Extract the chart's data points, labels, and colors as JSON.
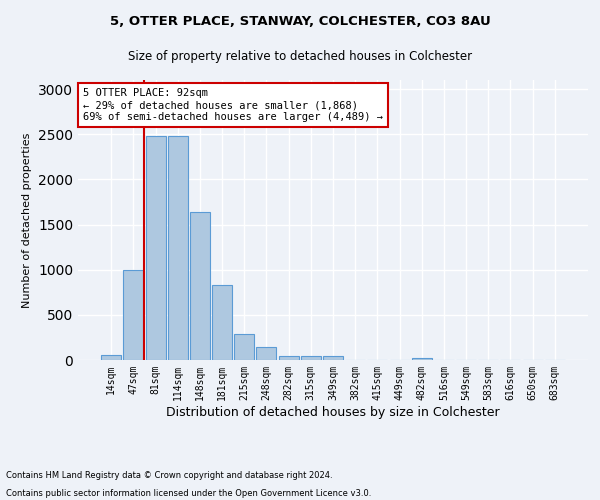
{
  "title1": "5, OTTER PLACE, STANWAY, COLCHESTER, CO3 8AU",
  "title2": "Size of property relative to detached houses in Colchester",
  "xlabel": "Distribution of detached houses by size in Colchester",
  "ylabel": "Number of detached properties",
  "footnote1": "Contains HM Land Registry data © Crown copyright and database right 2024.",
  "footnote2": "Contains public sector information licensed under the Open Government Licence v3.0.",
  "annotation_line1": "5 OTTER PLACE: 92sqm",
  "annotation_line2": "← 29% of detached houses are smaller (1,868)",
  "annotation_line3": "69% of semi-detached houses are larger (4,489) →",
  "bar_labels": [
    "14sqm",
    "47sqm",
    "81sqm",
    "114sqm",
    "148sqm",
    "181sqm",
    "215sqm",
    "248sqm",
    "282sqm",
    "315sqm",
    "349sqm",
    "382sqm",
    "415sqm",
    "449sqm",
    "482sqm",
    "516sqm",
    "549sqm",
    "583sqm",
    "616sqm",
    "650sqm",
    "683sqm"
  ],
  "bar_values": [
    55,
    1000,
    2475,
    2475,
    1640,
    835,
    290,
    145,
    45,
    45,
    40,
    0,
    0,
    0,
    25,
    0,
    0,
    0,
    0,
    0,
    0
  ],
  "bar_color": "#aec8e0",
  "bar_edge_color": "#5b9bd5",
  "vline_color": "#cc0000",
  "ylim": [
    0,
    3100
  ],
  "yticks": [
    0,
    500,
    1000,
    1500,
    2000,
    2500,
    3000
  ],
  "background_color": "#eef2f8",
  "axes_background": "#eef2f8",
  "annotation_box_color": "#cc0000",
  "grid_color": "#ffffff",
  "vline_index": 2
}
